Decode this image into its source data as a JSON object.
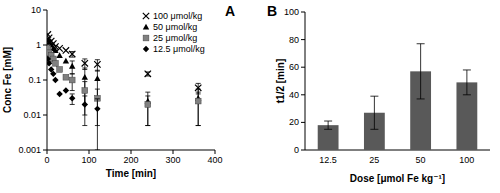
{
  "chart_data": [
    {
      "type": "scatter",
      "panel_label": "A",
      "x_label": "Time [min]",
      "y_label": "Conc Fe [mM]",
      "log": "y",
      "xlim": [
        0,
        400
      ],
      "xticks": [
        0,
        100,
        200,
        300,
        400
      ],
      "ylim": [
        0.001,
        10
      ],
      "yticks": [
        0.001,
        0.01,
        0.1,
        1,
        10
      ],
      "legend": "upper right",
      "series": [
        {
          "name": "100 μmol/kg",
          "marker": "x",
          "color": "#000000",
          "x": [
            2,
            5,
            10,
            15,
            20,
            30,
            45,
            60,
            90,
            120,
            240,
            360
          ],
          "values": [
            2.0,
            1.6,
            1.3,
            1.1,
            0.9,
            0.8,
            0.7,
            0.55,
            0.3,
            0.28,
            0.15,
            0.06
          ],
          "errors": [
            0,
            0,
            0,
            0,
            0,
            0,
            0,
            0.1,
            0.1,
            0.1,
            0.02,
            0.02
          ]
        },
        {
          "name": "50 μmol/kg",
          "marker": "triangle",
          "color": "#000000",
          "x": [
            2,
            5,
            10,
            15,
            20,
            30,
            45,
            60,
            90,
            120,
            240,
            360
          ],
          "values": [
            1.4,
            1.2,
            1.0,
            0.8,
            0.7,
            0.5,
            0.35,
            0.25,
            0.12,
            0.11,
            0.025,
            0.03
          ],
          "errors": [
            0,
            0,
            0,
            0,
            0,
            0,
            0,
            0.1,
            0.1,
            0.08,
            0.02,
            0.025
          ]
        },
        {
          "name": "25 μmol/kg",
          "marker": "square",
          "color": "#808080",
          "x": [
            2,
            5,
            10,
            15,
            20,
            30,
            45,
            60,
            90,
            120,
            240,
            360
          ],
          "values": [
            0.8,
            0.6,
            0.5,
            0.4,
            0.3,
            0.2,
            0.12,
            0.1,
            0.05,
            0.03,
            0.02,
            0.025
          ],
          "errors": [
            0,
            0,
            0,
            0,
            0,
            0,
            0,
            0.05,
            0.04,
            0.025,
            0.015,
            0.02
          ]
        },
        {
          "name": "12.5 μmol/kg",
          "marker": "diamond",
          "color": "#000000",
          "x": [
            2,
            5,
            10,
            15,
            20,
            30,
            45,
            60,
            90,
            120
          ],
          "values": [
            0.4,
            0.3,
            0.2,
            0.15,
            0.1,
            0.04,
            0.05,
            0.03,
            0.02,
            0.015
          ],
          "errors": [
            0,
            0,
            0,
            0,
            0,
            0,
            0,
            0.01,
            0.015,
            0.014
          ]
        }
      ]
    },
    {
      "type": "bar",
      "panel_label": "B",
      "x_label": "Dose [μmol Fe kg⁻¹]",
      "y_label": "t1/2 [min]",
      "categories": [
        "12.5",
        "25",
        "50",
        "100"
      ],
      "values": [
        18,
        27,
        57,
        49
      ],
      "errors": [
        3,
        12,
        20,
        9
      ],
      "color": "#595959",
      "ylim": [
        0,
        100
      ],
      "yticks": [
        0,
        20,
        40,
        60,
        80,
        100
      ]
    }
  ]
}
